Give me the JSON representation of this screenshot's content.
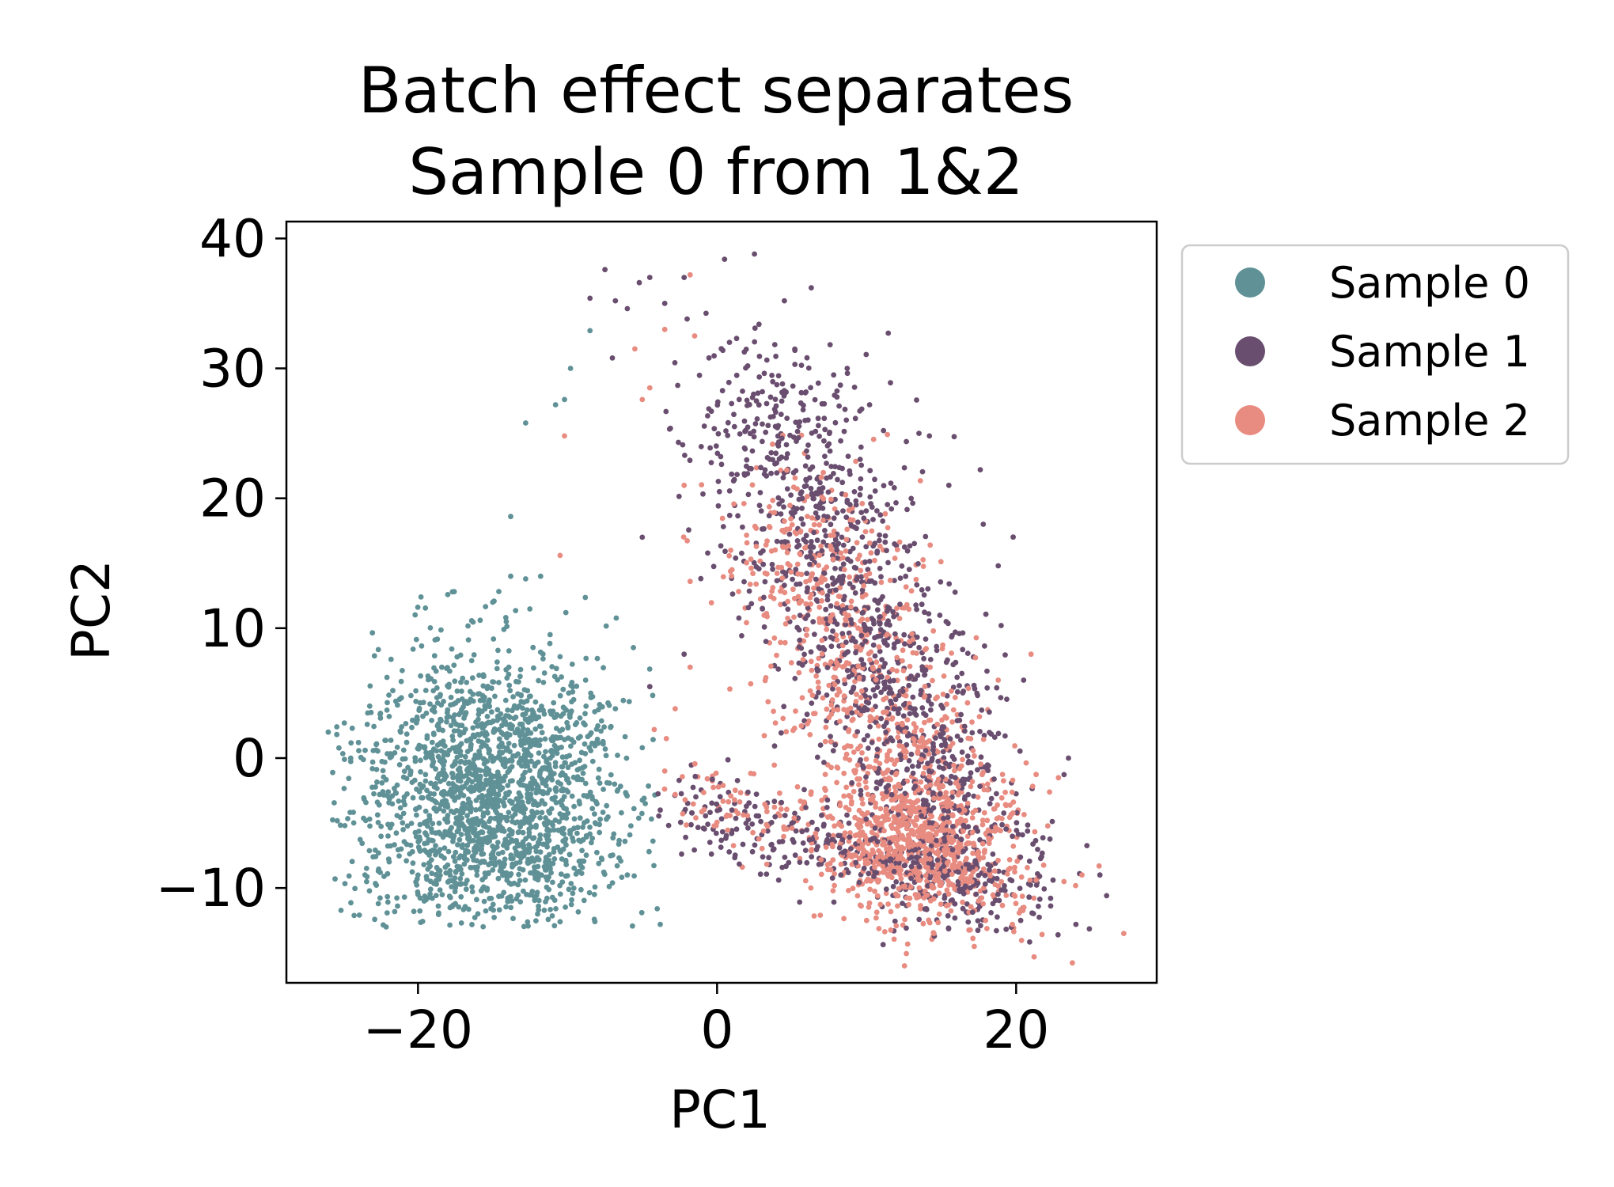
{
  "chart_data": {
    "type": "scatter",
    "title_lines": [
      "Batch effect separates",
      "Sample 0 from 1&2"
    ],
    "xlabel": "PC1",
    "ylabel": "PC2",
    "xlim": [
      -28.8,
      29.4
    ],
    "ylim": [
      -17.3,
      41.3
    ],
    "x_ticks": [
      -20,
      0,
      20
    ],
    "x_tick_labels": [
      "−20",
      "0",
      "20"
    ],
    "y_ticks": [
      -10,
      0,
      10,
      20,
      30,
      40
    ],
    "y_tick_labels": [
      "−10",
      "0",
      "10",
      "20",
      "30",
      "40"
    ],
    "grid": false,
    "legend_position": "outside right, top",
    "marker_size": "small",
    "series": [
      {
        "name": "Sample 0",
        "color": "#5f9196",
        "cluster": {
          "center": [
            -15,
            -3
          ],
          "spread": [
            4.5,
            5.5
          ],
          "count": 2000,
          "x_range": [
            -26,
            -4
          ],
          "y_range": [
            -13,
            13
          ]
        },
        "points": [
          [
            -26.0,
            2.0
          ],
          [
            -24.5,
            0.0
          ],
          [
            -23.5,
            -4.8
          ],
          [
            -23.0,
            -7.6
          ],
          [
            -21.8,
            7.6
          ],
          [
            -19.8,
            12.4
          ],
          [
            -17.7,
            12.8
          ],
          [
            -15.0,
            12.0
          ],
          [
            -13.8,
            14.0
          ],
          [
            -12.8,
            13.8
          ],
          [
            -11.8,
            14.0
          ],
          [
            -10.8,
            27.2
          ],
          [
            -10.2,
            27.6
          ],
          [
            -9.8,
            30.0
          ],
          [
            -8.5,
            32.9
          ],
          [
            -12.8,
            25.8
          ],
          [
            -13.8,
            18.6
          ],
          [
            -10.5,
            7.8
          ],
          [
            -9.8,
            3.5
          ],
          [
            -8.5,
            1.8
          ],
          [
            -6.8,
            3.8
          ],
          [
            -5.0,
            0.8
          ],
          [
            -4.8,
            -3.5
          ],
          [
            -4.0,
            -11.6
          ],
          [
            -3.8,
            -12.8
          ],
          [
            -12.0,
            -12.0
          ],
          [
            -10.5,
            -12.6
          ],
          [
            -8.2,
            -10.5
          ],
          [
            -6.0,
            -9.0
          ],
          [
            -20.0,
            -10.5
          ],
          [
            -17.5,
            -11.2
          ],
          [
            -22.0,
            -6.0
          ]
        ]
      },
      {
        "name": "Sample 1",
        "color": "#6a4e6f",
        "cluster": {
          "band_from": [
            2,
            31
          ],
          "band_to": [
            17,
            -9
          ],
          "spread": 3.2,
          "tail_to": [
            -2,
            -4
          ],
          "count": 1600
        },
        "points": [
          [
            -8.5,
            35.4
          ],
          [
            -7.5,
            37.6
          ],
          [
            -7.0,
            30.8
          ],
          [
            -6.8,
            35.2
          ],
          [
            -6.0,
            34.6
          ],
          [
            -5.2,
            36.6
          ],
          [
            -4.5,
            37.0
          ],
          [
            -3.5,
            35.0
          ],
          [
            -2.2,
            37.0
          ],
          [
            -2.0,
            33.8
          ],
          [
            0.5,
            38.4
          ],
          [
            2.5,
            38.8
          ],
          [
            6.3,
            36.2
          ],
          [
            4.5,
            35.2
          ],
          [
            8.7,
            30.0
          ],
          [
            10.2,
            27.2
          ],
          [
            13.5,
            25.0
          ],
          [
            14.2,
            24.8
          ],
          [
            15.5,
            21.0
          ],
          [
            17.6,
            22.2
          ],
          [
            17.8,
            18.0
          ],
          [
            18.8,
            14.8
          ],
          [
            19.0,
            10.2
          ],
          [
            20.5,
            6.0
          ],
          [
            23.5,
            0.0
          ],
          [
            25.6,
            -9.0
          ],
          [
            24.0,
            -12.8
          ],
          [
            22.8,
            -13.6
          ],
          [
            -5.0,
            17.0
          ],
          [
            -2.2,
            8.0
          ],
          [
            -4.5,
            5.5
          ],
          [
            -3.8,
            -4.0
          ]
        ]
      },
      {
        "name": "Sample 2",
        "color": "#e88b80",
        "cluster": {
          "band_from": [
            5,
            20
          ],
          "band_to": [
            16,
            -9
          ],
          "spread": 3.0,
          "tail_to": [
            -2,
            -2
          ],
          "count": 1600
        },
        "points": [
          [
            -1.8,
            37.2
          ],
          [
            -1.5,
            32.5
          ],
          [
            -3.5,
            33.0
          ],
          [
            -4.5,
            28.5
          ],
          [
            -5.0,
            27.6
          ],
          [
            -5.5,
            31.5
          ],
          [
            -10.2,
            24.8
          ],
          [
            -10.5,
            15.6
          ],
          [
            -2.2,
            21.0
          ],
          [
            -1.8,
            13.6
          ],
          [
            1.0,
            14.5
          ],
          [
            -1.8,
            7.0
          ],
          [
            -2.8,
            3.8
          ],
          [
            -4.2,
            2.2
          ],
          [
            -3.5,
            -1.0
          ],
          [
            -2.8,
            -2.8
          ],
          [
            21.0,
            8.0
          ],
          [
            18.8,
            6.0
          ],
          [
            23.2,
            -9.5
          ],
          [
            24.4,
            -9.0
          ],
          [
            27.2,
            -13.5
          ],
          [
            21.2,
            -15.3
          ],
          [
            17.2,
            -14.5
          ],
          [
            14.5,
            -13.5
          ],
          [
            10.0,
            -12.5
          ]
        ]
      }
    ]
  }
}
